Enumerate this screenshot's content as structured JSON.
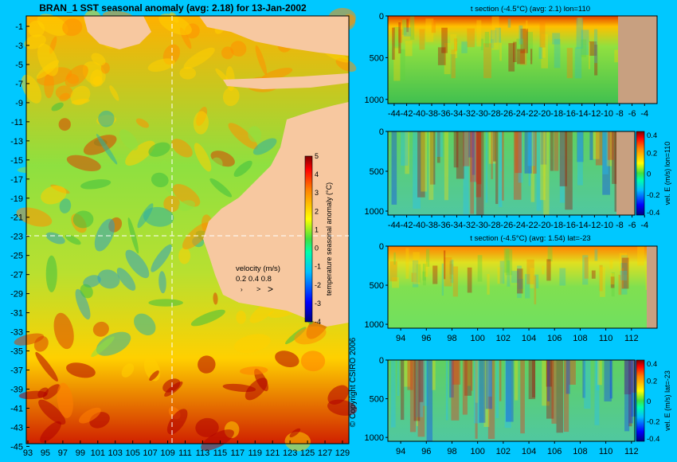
{
  "main_map": {
    "title": "BRAN_1 SST seasonal anomaly (avg: 2.18) for 13-Jan-2002",
    "lat_ticks": [
      "-1",
      "-3",
      "-5",
      "-7",
      "-9",
      "-11",
      "-13",
      "-15",
      "-17",
      "-19",
      "-21",
      "-23",
      "-25",
      "-27",
      "-29",
      "-31",
      "-33",
      "-35",
      "-37",
      "-39",
      "-41",
      "-43",
      "-45"
    ],
    "lon_ticks": [
      "93",
      "95",
      "97",
      "99",
      "101",
      "103",
      "105",
      "107",
      "109",
      "111",
      "113",
      "115",
      "117",
      "119",
      "121",
      "123",
      "125",
      "127",
      "129"
    ],
    "colorbar": {
      "label": "temperature seasonal anomaly (°C)",
      "ticks": [
        "5",
        "4",
        "3",
        "2",
        "1",
        "0",
        "-1",
        "-2",
        "-3",
        "-4"
      ],
      "range": [
        -4,
        5
      ]
    },
    "velocity_legend": {
      "title": "velocity (m/s)",
      "values": "0.2 0.4 0.8"
    },
    "section_lon": 110,
    "section_lat": -23,
    "copyright": "© Copyright CSIRO 2006"
  },
  "colors": {
    "background": "#00c8ff",
    "land": "#f7c8a0",
    "section_land": "#c8a080",
    "colormap": [
      "#00007f",
      "#0000ff",
      "#007fff",
      "#00ffff",
      "#7fff7f",
      "#ffff00",
      "#ff7f00",
      "#ff0000",
      "#7f0000"
    ]
  },
  "chart_data": [
    {
      "type": "heatmap",
      "title": "t section (-4.5°C) (avg: 2.1) lon=110",
      "x_ticks": [
        "-44",
        "-42",
        "-40",
        "-38",
        "-36",
        "-34",
        "-32",
        "-30",
        "-28",
        "-26",
        "-24",
        "-22",
        "-20",
        "-18",
        "-16",
        "-14",
        "-12",
        "-10",
        "-8",
        "-6",
        "-4"
      ],
      "y_ticks": [
        "0",
        "500",
        "1000"
      ],
      "xlim": [
        -45,
        -2
      ],
      "ylim": [
        1050,
        0
      ]
    },
    {
      "type": "heatmap",
      "title": "",
      "x_ticks": [
        "-44",
        "-42",
        "-40",
        "-38",
        "-36",
        "-34",
        "-32",
        "-30",
        "-28",
        "-26",
        "-24",
        "-22",
        "-20",
        "-18",
        "-16",
        "-14",
        "-12",
        "-10",
        "-8",
        "-6",
        "-4"
      ],
      "y_ticks": [
        "0",
        "500",
        "1000"
      ],
      "xlim": [
        -45,
        -2
      ],
      "ylim": [
        1050,
        0
      ],
      "colorbar_label": "vel. E (m/s) lon=110",
      "colorbar_ticks": [
        "0.4",
        "0.2",
        "0",
        "-0.2",
        "-0.4"
      ],
      "colorbar_range": [
        -0.4,
        0.4
      ]
    },
    {
      "type": "heatmap",
      "title": "t section (-4.5°C) (avg: 1.54) lat=-23",
      "x_ticks": [
        "94",
        "96",
        "98",
        "100",
        "102",
        "104",
        "106",
        "108",
        "110",
        "112"
      ],
      "y_ticks": [
        "0",
        "500",
        "1000"
      ],
      "xlim": [
        93,
        114
      ],
      "ylim": [
        1050,
        0
      ]
    },
    {
      "type": "heatmap",
      "title": "",
      "x_ticks": [
        "94",
        "96",
        "98",
        "100",
        "102",
        "104",
        "106",
        "108",
        "110",
        "112"
      ],
      "y_ticks": [
        "0",
        "500",
        "1000"
      ],
      "xlim": [
        93,
        114
      ],
      "ylim": [
        1050,
        0
      ],
      "colorbar_label": "vel. E (m/s) lat=-23",
      "colorbar_ticks": [
        "0.4",
        "0.2",
        "0",
        "-0.2",
        "-0.4"
      ],
      "colorbar_range": [
        -0.4,
        0.4
      ]
    }
  ]
}
